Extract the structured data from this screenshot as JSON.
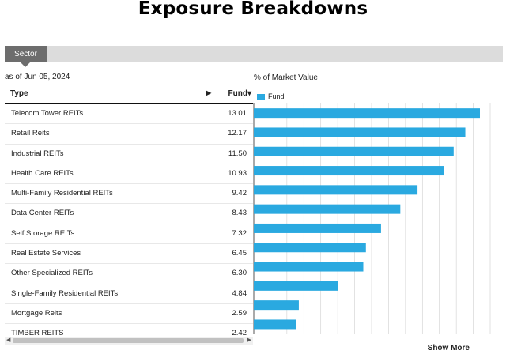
{
  "title": "Exposure Breakdowns",
  "tab": {
    "label": "Sector"
  },
  "as_of": "as of Jun 05, 2024",
  "table": {
    "col_type": "Type",
    "col_fund": "Fund▾",
    "sort_arrow": "▶"
  },
  "chart_label": "% of Market Value",
  "legend": {
    "label": "Fund"
  },
  "show_more": "Show More",
  "scroll": {
    "left": "◀",
    "right": "▶"
  },
  "colors": {
    "bar": "#2aa9e0",
    "grid": "#cfcfcf"
  },
  "rows": [
    {
      "name": "Telecom Tower REITs",
      "value": "13.01"
    },
    {
      "name": "Retail Reits",
      "value": "12.17"
    },
    {
      "name": "Industrial REITs",
      "value": "11.50"
    },
    {
      "name": "Health Care REITs",
      "value": "10.93"
    },
    {
      "name": "Multi-Family Residential REITs",
      "value": "9.42"
    },
    {
      "name": "Data Center REITs",
      "value": "8.43"
    },
    {
      "name": "Self Storage REITs",
      "value": "7.32"
    },
    {
      "name": "Real Estate Services",
      "value": "6.45"
    },
    {
      "name": "Other Specialized REITs",
      "value": "6.30"
    },
    {
      "name": "Single-Family Residential REITs",
      "value": "4.84"
    },
    {
      "name": "Mortgage Reits",
      "value": "2.59"
    },
    {
      "name": "TIMBER REITS",
      "value": "2.42"
    }
  ],
  "chart_data": {
    "type": "bar",
    "orientation": "horizontal",
    "categories": [
      "Telecom Tower REITs",
      "Retail Reits",
      "Industrial REITs",
      "Health Care REITs",
      "Multi-Family Residential REITs",
      "Data Center REITs",
      "Self Storage REITs",
      "Real Estate Services",
      "Other Specialized REITs",
      "Single-Family Residential REITs",
      "Mortgage Reits",
      "TIMBER REITS"
    ],
    "series": [
      {
        "name": "Fund",
        "values": [
          13.01,
          12.17,
          11.5,
          10.93,
          9.42,
          8.43,
          7.32,
          6.45,
          6.3,
          4.84,
          2.59,
          2.42
        ]
      }
    ],
    "xlim": [
      0,
      14
    ],
    "grid": true,
    "legend": "top-left"
  }
}
